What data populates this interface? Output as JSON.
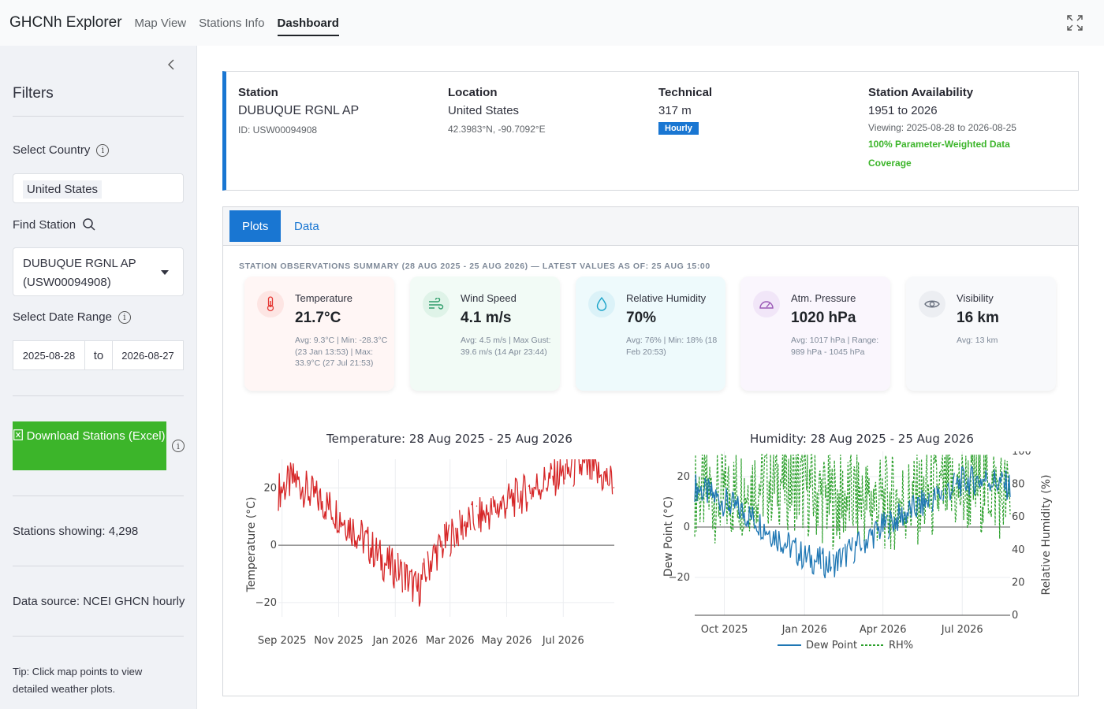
{
  "nav": {
    "brand": "GHCNh Explorer",
    "links": [
      "Map View",
      "Stations Info",
      "Dashboard"
    ],
    "active": "Dashboard"
  },
  "sidebar": {
    "title": "Filters",
    "country_label": "Select Country",
    "country_value": "United States",
    "find_label": "Find Station",
    "station_value": "DUBUQUE RGNL AP (USW00094908)",
    "date_label": "Select Date Range",
    "date_start": "2025-08-28",
    "date_to": "to",
    "date_end": "2026-08-27",
    "download_label": "Download Stations (Excel)",
    "stations_showing": "Stations showing: 4,298",
    "data_source": "Data source: NCEI GHCN hourly",
    "tip": "Tip: Click map points to view detailed weather plots."
  },
  "station": {
    "h_station": "Station",
    "name": "DUBUQUE RGNL AP",
    "id": "ID: USW00094908",
    "h_location": "Location",
    "country": "United States",
    "coords": "42.3983°N, -90.7092°E",
    "h_technical": "Technical",
    "elevation": "317 m",
    "badge": "Hourly",
    "h_availability": "Station Availability",
    "years": "1951 to 2026",
    "viewing": "Viewing: 2025-08-28 to 2026-08-25",
    "coverage": "100% Parameter-Weighted Data Coverage"
  },
  "tabs": [
    "Plots",
    "Data"
  ],
  "summary_title": "STATION OBSERVATIONS SUMMARY (28 AUG 2025 - 25 AUG 2026) — LATEST VALUES AS OF: 25 AUG 15:00",
  "metrics": [
    {
      "label": "Temperature",
      "value": "21.7°C",
      "sub": "Avg: 9.3°C | Min: -28.3°C (23 Jan 13:53) | Max: 33.9°C (27 Jul 21:53)",
      "icon": "thermometer-icon",
      "color": "#e53935"
    },
    {
      "label": "Wind Speed",
      "value": "4.1 m/s",
      "sub": "Avg: 4.5 m/s | Max Gust: 39.6 m/s (14 Apr 23:44)",
      "icon": "wind-icon",
      "color": "#2e9d6a"
    },
    {
      "label": "Relative Humidity",
      "value": "70%",
      "sub": "Avg: 76% | Min: 18% (18 Feb 20:53)",
      "icon": "droplet-icon",
      "color": "#1aa3c9"
    },
    {
      "label": "Atm. Pressure",
      "value": "1020 hPa",
      "sub": "Avg: 1017 hPa | Range: 989 hPa - 1045 hPa",
      "icon": "gauge-icon",
      "color": "#9b59b6"
    },
    {
      "label": "Visibility",
      "value": "16 km",
      "sub": "Avg: 13 km",
      "icon": "eye-icon",
      "color": "#6b7280"
    }
  ],
  "chart_data": [
    {
      "type": "line",
      "title": "Temperature: 28 Aug 2025 - 25 Aug 2026",
      "xlabel": "",
      "ylabel": "Temperature (°C)",
      "x_ticks": [
        "Sep 2025",
        "Nov 2025",
        "Jan 2026",
        "Mar 2026",
        "May 2026",
        "Jul 2026"
      ],
      "y_ticks": [
        -20,
        0,
        20
      ],
      "ylim": [
        -25,
        30
      ],
      "series": [
        {
          "color": "#d62728",
          "x": [
            "2025-08-28",
            "2025-09-15",
            "2025-10-01",
            "2025-10-20",
            "2025-11-10",
            "2025-12-01",
            "2025-12-20",
            "2026-01-10",
            "2026-01-25",
            "2026-02-10",
            "2026-03-01",
            "2026-03-20",
            "2026-04-10",
            "2026-05-01",
            "2026-05-20",
            "2026-06-10",
            "2026-07-01",
            "2026-07-20",
            "2026-08-10",
            "2026-08-25"
          ],
          "values": [
            19,
            23,
            18,
            14,
            8,
            1,
            -6,
            -10,
            -16,
            -4,
            3,
            8,
            11,
            15,
            18,
            22,
            25,
            27,
            24,
            21.7
          ]
        }
      ]
    },
    {
      "type": "line",
      "title": "Humidity: 28 Aug 2025 - 25 Aug 2026",
      "xlabel": "",
      "ylabel": "Dew Point (°C)",
      "y2label": "Relative Humidity (%)",
      "x_ticks": [
        "Oct 2025",
        "Jan 2026",
        "Apr 2026",
        "Jul 2026"
      ],
      "y_ticks": [
        -20,
        0,
        20
      ],
      "y2_ticks": [
        0,
        20,
        40,
        60,
        80,
        100
      ],
      "ylim": [
        -35,
        30
      ],
      "y2lim": [
        0,
        100
      ],
      "legend": [
        "Dew Point",
        "RH%"
      ],
      "legend_position": "bottom",
      "series": [
        {
          "name": "Dew Point",
          "color": "#1f77b4",
          "x": [
            "2025-08-28",
            "2025-10-01",
            "2025-11-01",
            "2025-12-01",
            "2026-01-01",
            "2026-02-01",
            "2026-03-01",
            "2026-04-01",
            "2026-05-01",
            "2026-06-01",
            "2026-07-01",
            "2026-08-01",
            "2026-08-25"
          ],
          "values": [
            16,
            10,
            4,
            -4,
            -12,
            -15,
            -8,
            0,
            6,
            12,
            18,
            19,
            16
          ]
        },
        {
          "name": "RH%",
          "color": "#2ca02c",
          "x": [
            "2025-08-28",
            "2025-10-01",
            "2025-11-01",
            "2025-12-01",
            "2026-01-01",
            "2026-02-01",
            "2026-03-01",
            "2026-04-01",
            "2026-05-01",
            "2026-06-01",
            "2026-07-01",
            "2026-08-01",
            "2026-08-25"
          ],
          "values": [
            78,
            72,
            80,
            84,
            78,
            70,
            72,
            68,
            70,
            74,
            76,
            80,
            70
          ]
        }
      ]
    }
  ]
}
